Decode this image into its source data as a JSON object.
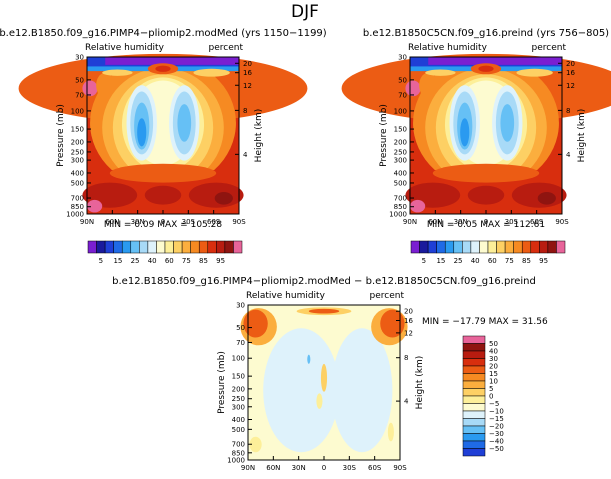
{
  "figure": {
    "title": "DJF"
  },
  "palette": {
    "abs": [
      "#7a1fd1",
      "#1a1a9c",
      "#1f3fd6",
      "#1f6ae6",
      "#2a9af0",
      "#66c0f5",
      "#a8daf7",
      "#def2fb",
      "#fdfbd0",
      "#fdef99",
      "#fdd064",
      "#fbae3e",
      "#f68a22",
      "#ec5c14",
      "#d82e0e",
      "#b81c10",
      "#8f1410",
      "#e8649a"
    ],
    "diff": [
      "#7a1fd1",
      "#1a1a9c",
      "#1f3fd6",
      "#1f6ae6",
      "#2a9af0",
      "#66c0f5",
      "#a8daf7",
      "#def2fb",
      "#fdfbd0",
      "#fdef99",
      "#fdd064",
      "#fbae3e",
      "#f68a22",
      "#ec5c14",
      "#d82e0e",
      "#b81c10",
      "#8f1410",
      "#e8649a"
    ]
  },
  "chart_data": [
    {
      "type": "heatmap",
      "title": "b.e12.B1850.f09_g16.PIMP4−pliomip2.modMed (yrs 1150−1199)",
      "subtitle_left": "Relative humidity",
      "subtitle_right": "percent",
      "ylabel": "Pressure (mb)",
      "y2label": "Height (km)",
      "stats": "MIN =    0.09   MAX = 105.28",
      "xticks": [
        "90N",
        "60N",
        "30N",
        "0",
        "30S",
        "60S",
        "90S"
      ],
      "yticks": [
        "30",
        "50",
        "70",
        "100",
        "150",
        "200",
        "250",
        "300",
        "400",
        "500",
        "700",
        "850",
        "1000"
      ],
      "y2ticks": [
        "20",
        "16",
        "12",
        "8",
        "4"
      ],
      "xlim": [
        -90,
        90
      ],
      "ylim": [
        1000,
        30
      ],
      "colorbar_labels": [
        "5",
        "15",
        "25",
        "40",
        "60",
        "75",
        "85",
        "95"
      ]
    },
    {
      "type": "heatmap",
      "title": "b.e12.B1850C5CN.f09_g16.preind (yrs 756−805)",
      "subtitle_left": "Relative humidity",
      "subtitle_right": "percent",
      "ylabel": "Pressure (mb)",
      "y2label": "Height (km)",
      "stats": "MIN =    0.05   MAX = 112.61",
      "xticks": [
        "90N",
        "60N",
        "30N",
        "0",
        "30S",
        "60S",
        "90S"
      ],
      "yticks": [
        "30",
        "50",
        "70",
        "100",
        "150",
        "200",
        "250",
        "300",
        "400",
        "500",
        "700",
        "850",
        "1000"
      ],
      "y2ticks": [
        "20",
        "16",
        "12",
        "8",
        "4"
      ],
      "xlim": [
        -90,
        90
      ],
      "ylim": [
        1000,
        30
      ],
      "colorbar_labels": [
        "5",
        "15",
        "25",
        "40",
        "60",
        "75",
        "85",
        "95"
      ]
    },
    {
      "type": "heatmap",
      "title": "b.e12.B1850.f09_g16.PIMP4−pliomip2.modMed − b.e12.B1850C5CN.f09_g16.preind",
      "subtitle_left": "Relative humidity",
      "subtitle_right": "percent",
      "ylabel": "Pressure (mb)",
      "y2label": "Height (km)",
      "stats": "MIN = −17.79   MAX =   31.56",
      "xticks": [
        "90N",
        "60N",
        "30N",
        "0",
        "30S",
        "60S",
        "90S"
      ],
      "yticks": [
        "30",
        "50",
        "70",
        "100",
        "150",
        "200",
        "250",
        "300",
        "400",
        "500",
        "700",
        "850",
        "1000"
      ],
      "y2ticks": [
        "20",
        "16",
        "12",
        "8",
        "4"
      ],
      "xlim": [
        -90,
        90
      ],
      "ylim": [
        1000,
        30
      ],
      "colorbar_labels": [
        "50",
        "40",
        "30",
        "20",
        "15",
        "10",
        "5",
        "0",
        "−5",
        "−10",
        "−15",
        "−20",
        "−30",
        "−40",
        "−50"
      ]
    }
  ]
}
